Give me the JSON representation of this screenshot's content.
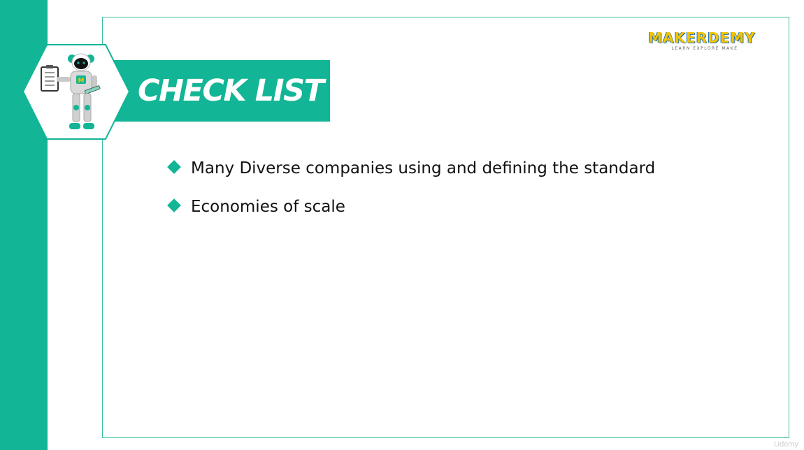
{
  "slide": {
    "title": "CHECK LIST",
    "bullets": [
      "Many Diverse companies using and defining the standard",
      "Economies of scale"
    ]
  },
  "logo": {
    "name": "MAKERDEMY",
    "tagline": "LEARN EXPLORE MAKE"
  },
  "watermark": "Udemy",
  "colors": {
    "accent": "#12b595",
    "frame": "#3fbf9f",
    "logo_yellow": "#f5c400",
    "logo_blue": "#1e6fb8",
    "text": "#111111"
  },
  "icons": {
    "mascot": "robot-with-clipboard-icon",
    "bullet": "diamond-bullet-icon"
  }
}
